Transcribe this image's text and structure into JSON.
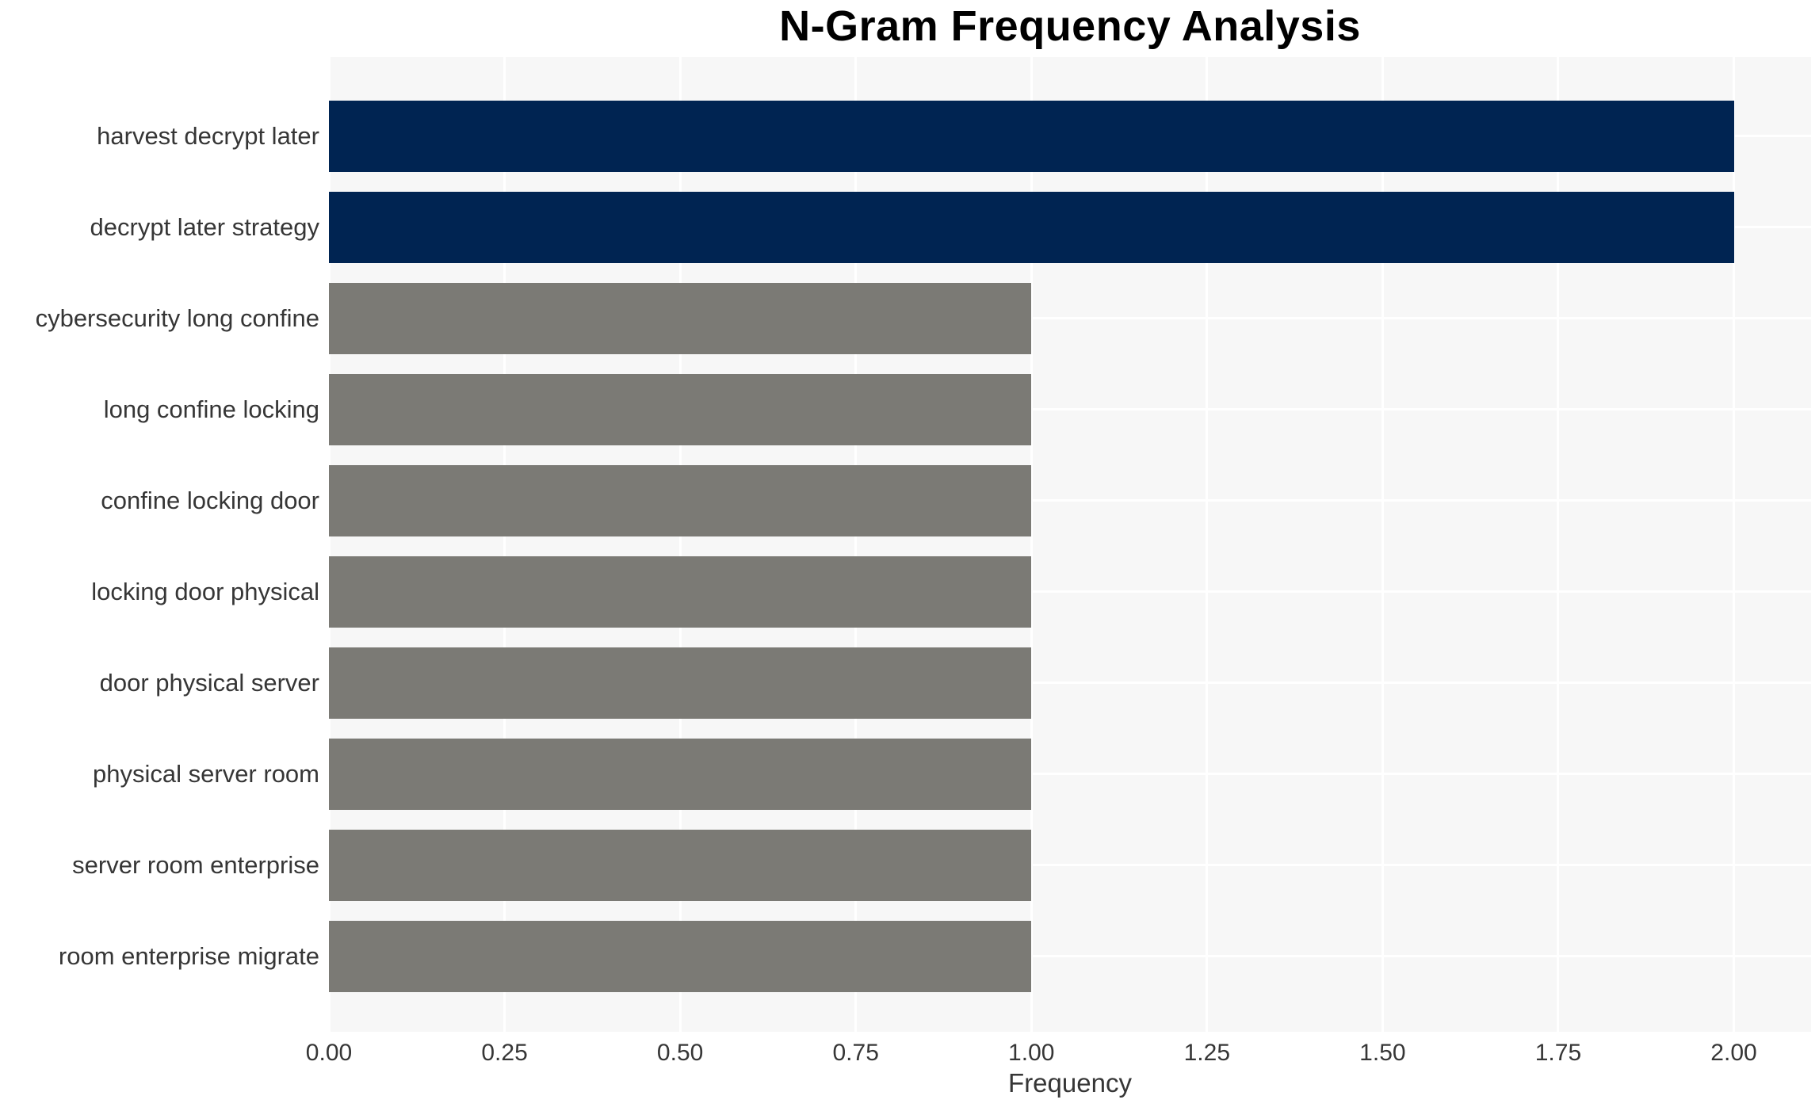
{
  "chart_data": {
    "type": "bar",
    "orientation": "horizontal",
    "title": "N-Gram Frequency Analysis",
    "xlabel": "Frequency",
    "ylabel": "",
    "categories": [
      "harvest decrypt later",
      "decrypt later strategy",
      "cybersecurity long confine",
      "long confine locking",
      "confine locking door",
      "locking door physical",
      "door physical server",
      "physical server room",
      "server room enterprise",
      "room enterprise migrate"
    ],
    "values": [
      2,
      2,
      1,
      1,
      1,
      1,
      1,
      1,
      1,
      1
    ],
    "bar_colors": [
      "#002452",
      "#002452",
      "#7b7a75",
      "#7b7a75",
      "#7b7a75",
      "#7b7a75",
      "#7b7a75",
      "#7b7a75",
      "#7b7a75",
      "#7b7a75"
    ],
    "xlim": [
      0,
      2.11
    ],
    "xticks": [
      0,
      0.25,
      0.5,
      0.75,
      1,
      1.25,
      1.5,
      1.75,
      2
    ],
    "xtick_labels": [
      "0.00",
      "0.25",
      "0.50",
      "0.75",
      "1.00",
      "1.25",
      "1.50",
      "1.75",
      "2.00"
    ],
    "grid": true,
    "legend_position": "none"
  },
  "style": {
    "plot_background": "#f7f7f7",
    "gridline_color": "#ffffff",
    "text_color": "#363636",
    "title_color": "#000000",
    "figure_background": "#ffffff"
  }
}
